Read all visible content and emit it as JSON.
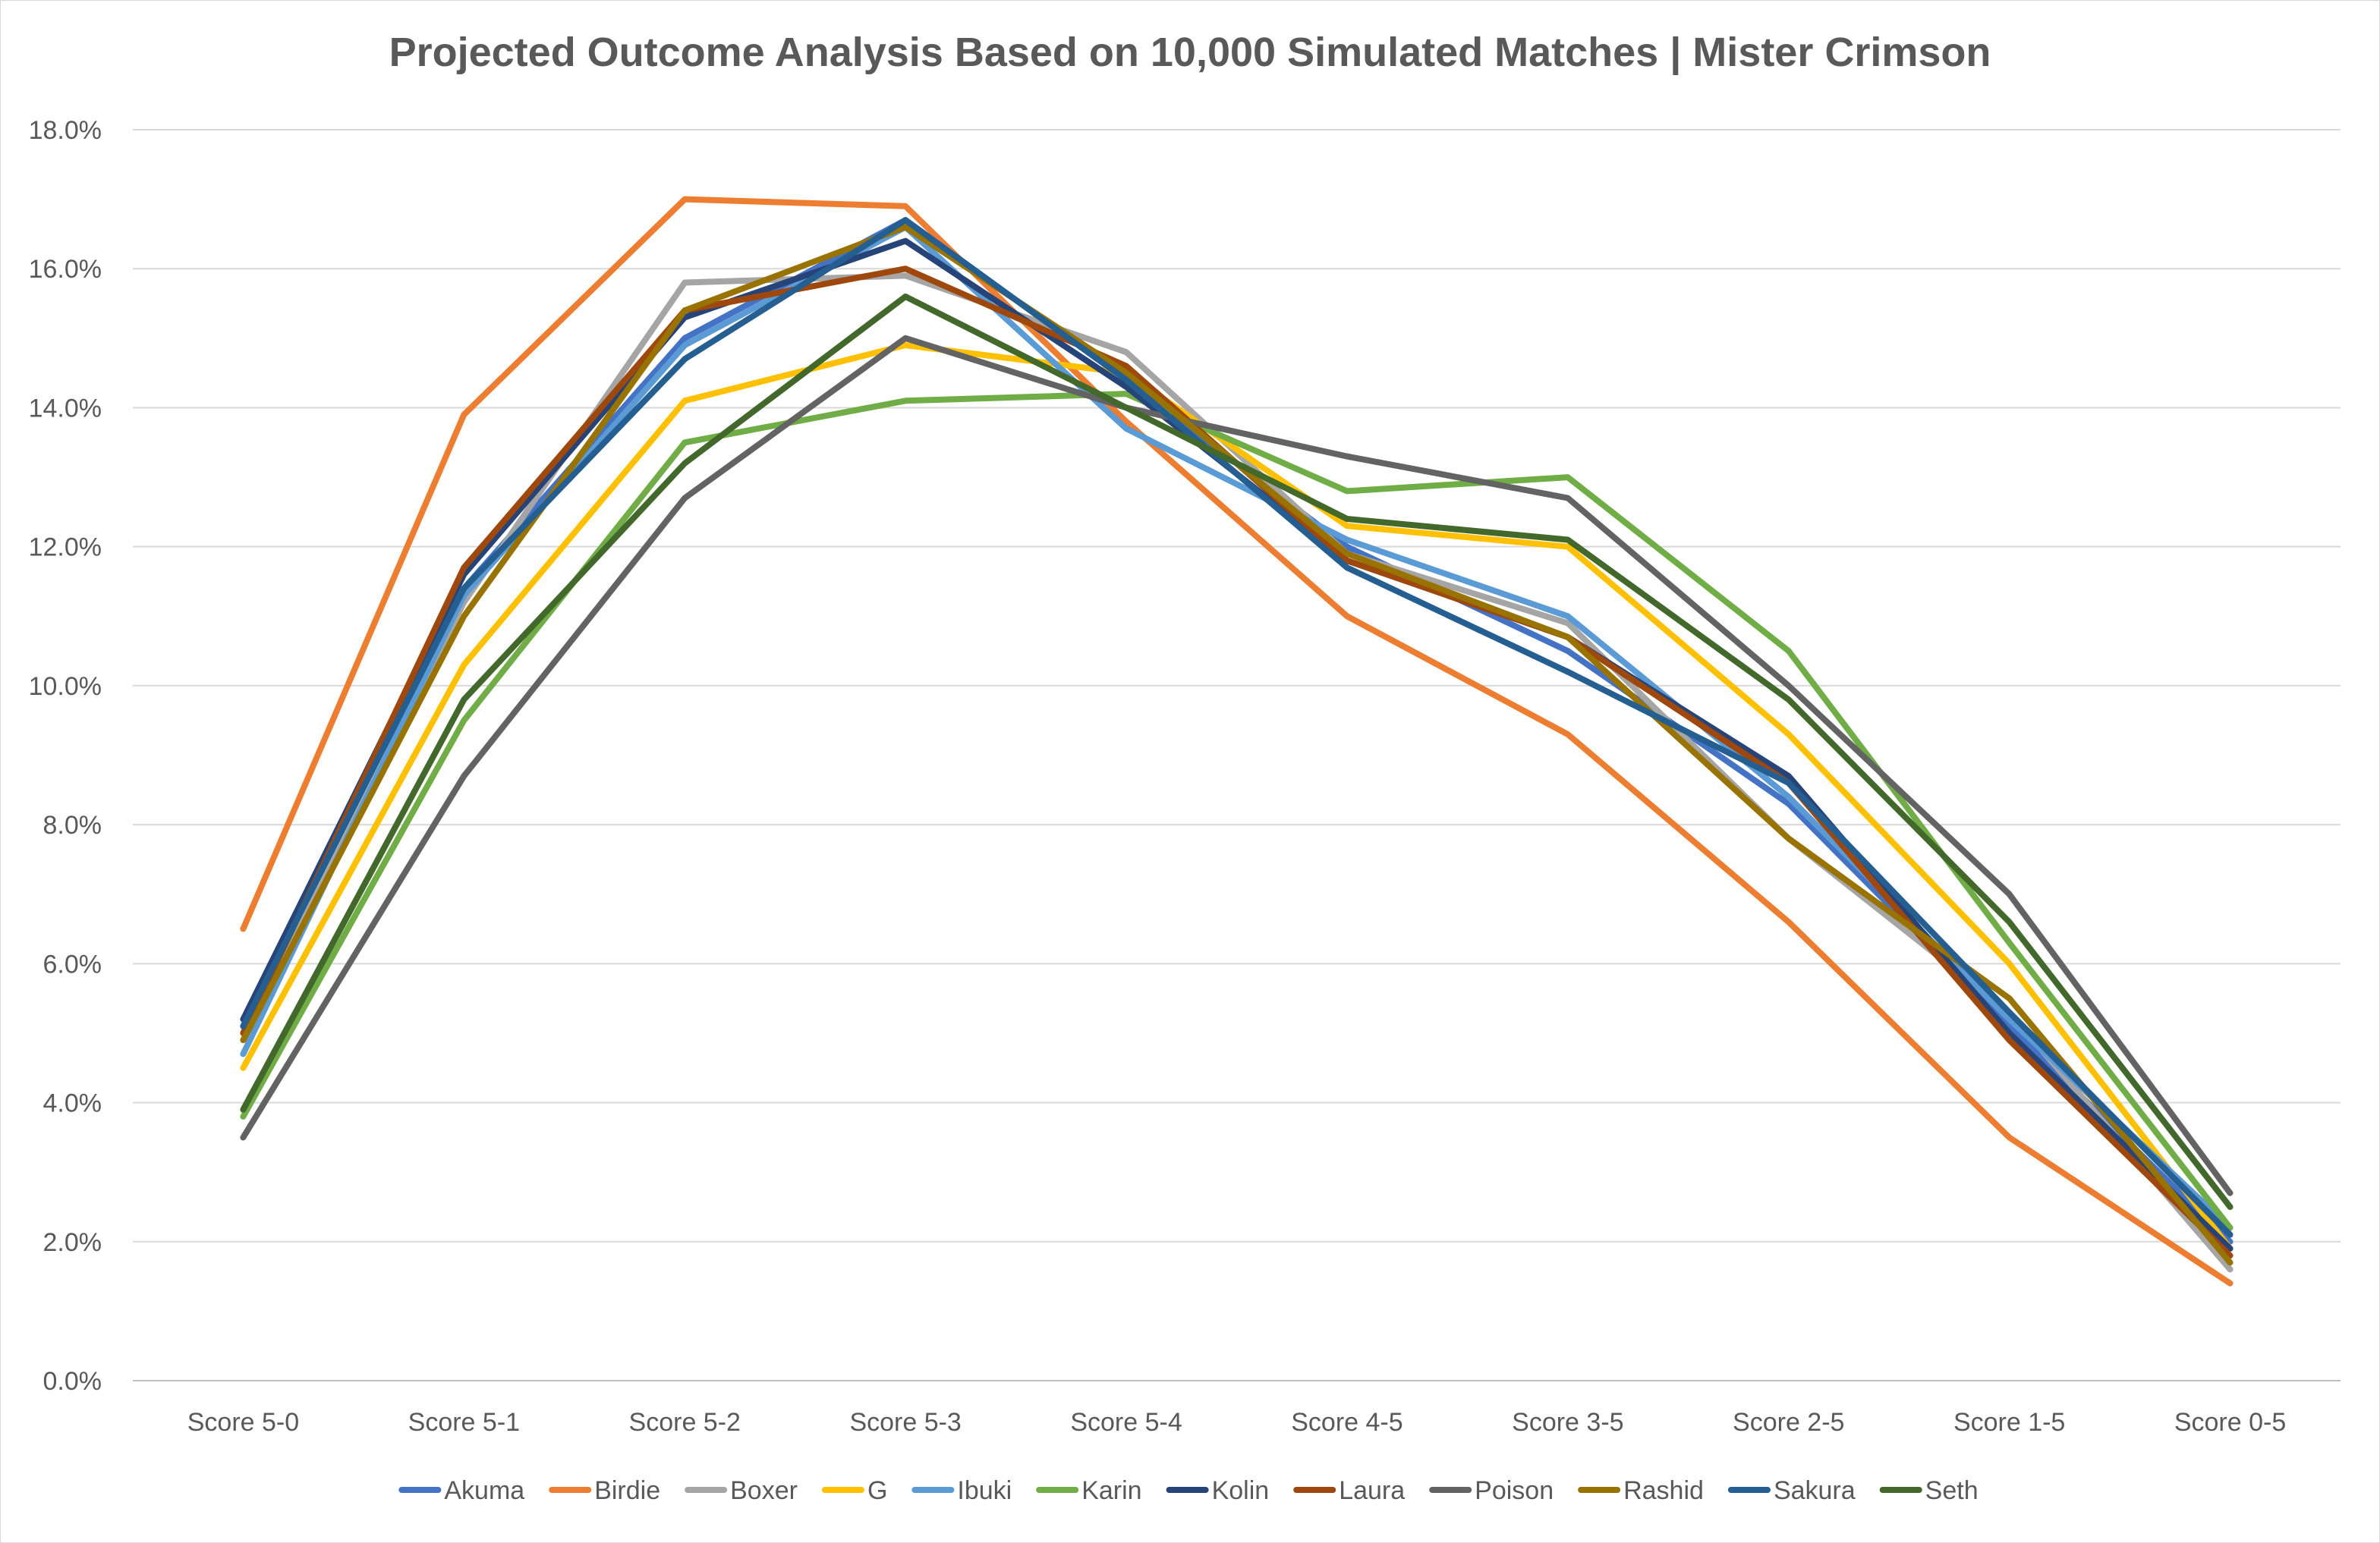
{
  "chart_data": {
    "type": "line",
    "title": "Projected Outcome Analysis Based on 10,000 Simulated Matches | Mister Crimson",
    "xlabel": "",
    "ylabel": "",
    "ylim": [
      0,
      18
    ],
    "y_ticks": [
      "0.0%",
      "2.0%",
      "4.0%",
      "6.0%",
      "8.0%",
      "10.0%",
      "12.0%",
      "14.0%",
      "16.0%",
      "18.0%"
    ],
    "grid": true,
    "legend_position": "bottom",
    "categories": [
      "Score 5-0",
      "Score 5-1",
      "Score 5-2",
      "Score 5-3",
      "Score 5-4",
      "Score 4-5",
      "Score 3-5",
      "Score 2-5",
      "Score 1-5",
      "Score 0-5"
    ],
    "series": [
      {
        "name": "Akuma",
        "color": "#4472C4",
        "values": [
          5.1,
          11.4,
          15.0,
          16.7,
          14.4,
          12.0,
          10.5,
          8.3,
          5.1,
          2.0
        ]
      },
      {
        "name": "Birdie",
        "color": "#ED7D31",
        "values": [
          6.5,
          13.9,
          17.0,
          16.9,
          13.8,
          11.0,
          9.3,
          6.6,
          3.5,
          1.4
        ]
      },
      {
        "name": "Boxer",
        "color": "#A5A5A5",
        "values": [
          4.9,
          11.2,
          15.8,
          15.9,
          14.8,
          11.9,
          10.9,
          7.8,
          5.3,
          1.6
        ]
      },
      {
        "name": "G",
        "color": "#FFC000",
        "values": [
          4.5,
          10.3,
          14.1,
          14.9,
          14.5,
          12.3,
          12.0,
          9.3,
          6.0,
          1.9
        ]
      },
      {
        "name": "Ibuki",
        "color": "#5B9BD5",
        "values": [
          4.7,
          11.3,
          14.9,
          16.6,
          13.7,
          12.1,
          11.0,
          8.4,
          5.2,
          2.2
        ]
      },
      {
        "name": "Karin",
        "color": "#70AD47",
        "values": [
          3.8,
          9.5,
          13.5,
          14.1,
          14.2,
          12.8,
          13.0,
          10.5,
          6.3,
          2.2
        ]
      },
      {
        "name": "Kolin",
        "color": "#264478",
        "values": [
          5.2,
          11.6,
          15.3,
          16.4,
          14.3,
          11.8,
          10.7,
          8.7,
          5.0,
          1.9
        ]
      },
      {
        "name": "Laura",
        "color": "#9E480E",
        "values": [
          5.0,
          11.7,
          15.4,
          16.0,
          14.6,
          11.8,
          10.7,
          8.6,
          4.9,
          1.8
        ]
      },
      {
        "name": "Poison",
        "color": "#636363",
        "values": [
          3.5,
          8.7,
          12.7,
          15.0,
          14.0,
          13.3,
          12.7,
          10.0,
          7.0,
          2.7
        ]
      },
      {
        "name": "Rashid",
        "color": "#997300",
        "values": [
          4.9,
          11.0,
          15.4,
          16.6,
          14.5,
          11.9,
          10.7,
          7.8,
          5.5,
          1.7
        ]
      },
      {
        "name": "Sakura",
        "color": "#255E91",
        "values": [
          5.1,
          11.4,
          14.7,
          16.7,
          14.4,
          11.7,
          10.2,
          8.6,
          5.3,
          2.1
        ]
      },
      {
        "name": "Seth",
        "color": "#43682B",
        "values": [
          3.9,
          9.8,
          13.2,
          15.6,
          14.0,
          12.4,
          12.1,
          9.8,
          6.6,
          2.5
        ]
      }
    ]
  }
}
